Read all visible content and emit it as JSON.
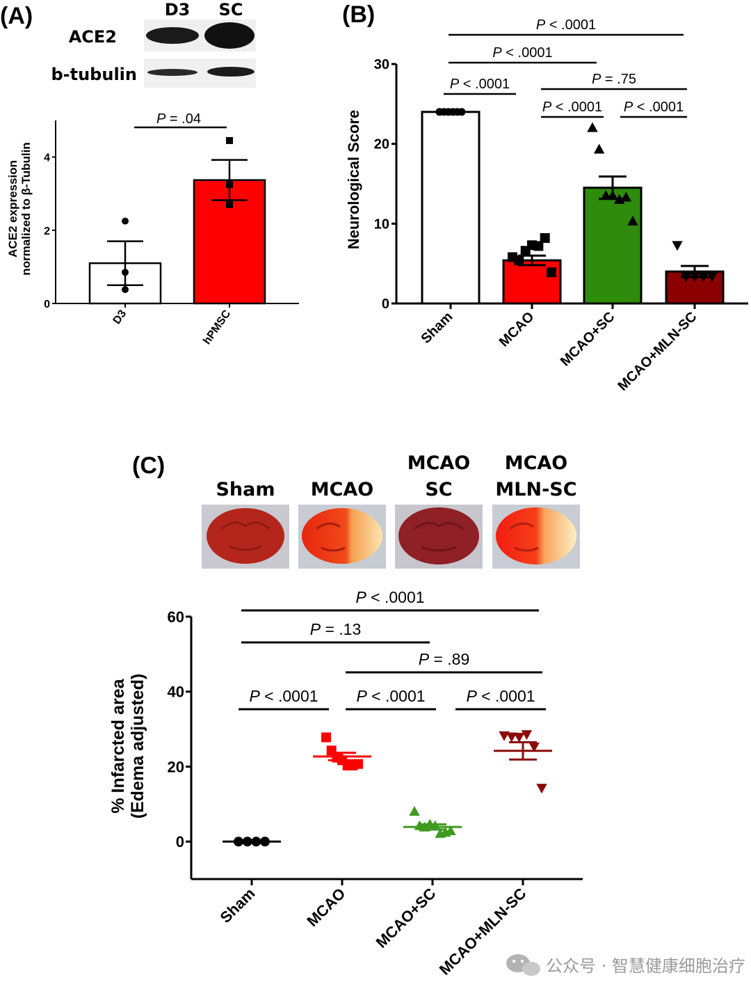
{
  "panels": {
    "a": {
      "letter": "(A)",
      "blot": {
        "lanes": [
          "D3",
          "SC"
        ],
        "rows": [
          "ACE2",
          "b-tubulin"
        ]
      },
      "chart_data": {
        "type": "bar",
        "categories": [
          "D3",
          "hPMSC"
        ],
        "values": [
          1.1,
          3.37
        ],
        "errors": [
          0.6,
          0.55
        ],
        "points": [
          [
            2.25,
            0.85,
            0.38
          ],
          [
            4.45,
            3.25,
            2.7
          ]
        ],
        "bar_colors": [
          "#ffffff",
          "#ff0000"
        ],
        "marker_shapes": [
          "circle",
          "square"
        ],
        "xlabel": "",
        "ylabel_lines": [
          "ACE2 expression",
          "normalized to β-Tubulin"
        ],
        "ylim": [
          0,
          5
        ],
        "yticks": [
          "0",
          "2",
          "4"
        ],
        "ytick_values": [
          0,
          2,
          4
        ],
        "significance": [
          {
            "italic": "P",
            "text": " = .04",
            "from": 0,
            "to": 1
          }
        ]
      }
    },
    "b": {
      "letter": "(B)",
      "chart_data": {
        "type": "bar",
        "categories": [
          "Sham",
          "MCAO",
          "MCAO+SC",
          "MCAO+MLN-SC"
        ],
        "values": [
          24,
          5.4,
          14.5,
          4.0
        ],
        "errors": [
          0,
          0.6,
          1.4,
          0.7
        ],
        "points": [
          [
            24,
            24,
            24,
            24,
            24,
            24
          ],
          [
            5.8,
            5.4,
            6.6,
            7.3,
            7.2,
            8.2,
            3.9
          ],
          [
            22,
            19.3,
            13.5,
            13.5,
            13.0,
            13.3,
            10.3
          ],
          [
            7.3,
            3.4,
            3.4,
            3.4,
            3.4
          ]
        ],
        "bar_colors": [
          "#ffffff",
          "#ff0000",
          "#2e8b0c",
          "#8b0000"
        ],
        "marker_shapes": [
          "circle",
          "square",
          "triangle-up",
          "triangle-down"
        ],
        "xlabel": "",
        "ylabel": "Neurological Score",
        "ylim": [
          0,
          30
        ],
        "yticks": [
          "0",
          "10",
          "20",
          "30"
        ],
        "ytick_values": [
          0,
          10,
          20,
          30
        ],
        "significance": [
          {
            "italic": "P",
            "text": " < .0001",
            "from": 0,
            "to": 3
          },
          {
            "italic": "P",
            "text": " < .0001",
            "from": 0,
            "to": 2
          },
          {
            "italic": "P",
            "text": " < .0001",
            "from": 0,
            "to": 1
          },
          {
            "italic": "P",
            "text": " = .75",
            "from": 1,
            "to": 3
          },
          {
            "italic": "P",
            "text": " < .0001",
            "from": 1,
            "to": 2
          },
          {
            "italic": "P",
            "text": " < .0001",
            "from": 2,
            "to": 3
          }
        ]
      }
    },
    "c": {
      "letter": "(C)",
      "brain_labels": [
        [
          "Sham"
        ],
        [
          "MCAO"
        ],
        [
          "MCAO",
          "SC"
        ],
        [
          "MCAO",
          "MLN-SC"
        ]
      ],
      "chart_data": {
        "type": "scatter",
        "categories": [
          "Sham",
          "MCAO",
          "MCAO+SC",
          "MCAO+MLN-SC"
        ],
        "means": [
          0,
          22.7,
          3.9,
          24.2
        ],
        "errors": [
          0,
          1.0,
          0.7,
          2.3
        ],
        "points": [
          [
            0,
            0,
            0,
            0
          ],
          [
            27.8,
            24.3,
            22.4,
            21.7,
            20.3,
            20.3,
            20.7
          ],
          [
            8.0,
            4.2,
            3.8,
            4.6,
            4.2,
            2.1,
            2.4,
            2.8
          ],
          [
            28.3,
            28.0,
            27.9,
            28.6,
            25.3,
            14.3
          ]
        ],
        "colors": [
          "#000000",
          "#ff0000",
          "#3f9a1f",
          "#8b0a0a"
        ],
        "marker_shapes": [
          "circle",
          "square",
          "triangle-up",
          "triangle-down"
        ],
        "xlabel": "",
        "ylabel_lines": [
          "% Infarcted area",
          "(Edema adjusted)"
        ],
        "ylim": [
          -10,
          60
        ],
        "yticks": [
          "0",
          "20",
          "40",
          "60"
        ],
        "ytick_values": [
          0,
          20,
          40,
          60
        ],
        "significance": [
          {
            "italic": "P",
            "text": " < .0001",
            "from": 0,
            "to": 3
          },
          {
            "italic": "P",
            "text": " = .13",
            "from": 0,
            "to": 2
          },
          {
            "italic": "P",
            "text": " = .89",
            "from": 1,
            "to": 3
          },
          {
            "italic": "P",
            "text": " < .0001",
            "from": 0,
            "to": 1
          },
          {
            "italic": "P",
            "text": " < .0001",
            "from": 1,
            "to": 2
          },
          {
            "italic": "P",
            "text": " < .0001",
            "from": 2,
            "to": 3
          }
        ]
      }
    }
  },
  "watermark": "公众号 · 智慧健康细胞治疗"
}
